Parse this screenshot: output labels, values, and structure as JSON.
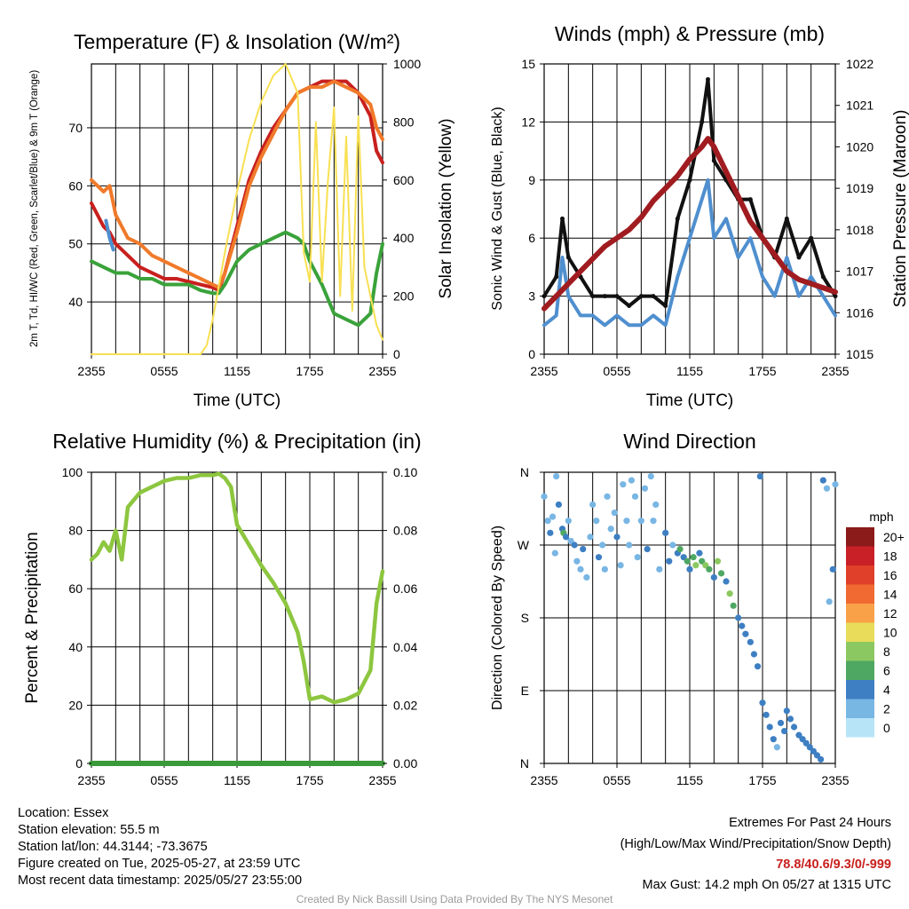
{
  "chart_data": [
    {
      "type": "line",
      "title": "Temperature (F) & Insolation (W/m²)",
      "xlabel": "Time (UTC)",
      "ylabel": "2m T, Td, HI/WC (Red, Green, Scarlet/Blue) & 9m T (Orange)",
      "ylabel_right": "Solar Insolation (Yellow)",
      "x_ticks": [
        "2355",
        "0555",
        "1155",
        "1755",
        "2355"
      ],
      "ylim": [
        31,
        81
      ],
      "y_ticks": [
        40,
        50,
        60,
        70
      ],
      "ylim_right": [
        0,
        1000
      ],
      "y_ticks_right": [
        0,
        200,
        400,
        600,
        800,
        1000
      ],
      "grid": true,
      "series": [
        {
          "name": "2m T",
          "color": "#c8201e",
          "axis": "left",
          "x": [
            0,
            1,
            1.5,
            2,
            3,
            4,
            5,
            6,
            7,
            8,
            9,
            10,
            10.5,
            11,
            12,
            13,
            14,
            15,
            16,
            17,
            18,
            19,
            20,
            21,
            22,
            23,
            23.5,
            24
          ],
          "values": [
            57,
            53,
            52,
            50,
            48,
            46,
            45,
            44,
            44,
            43.5,
            43,
            42.5,
            42,
            45,
            53,
            61,
            66,
            70,
            73,
            76,
            77,
            78,
            78,
            78,
            76,
            72,
            66,
            64
          ]
        },
        {
          "name": "Dewpoint",
          "color": "#3aa23a",
          "axis": "left",
          "x": [
            0,
            1,
            2,
            3,
            4,
            5,
            6,
            7,
            8,
            9,
            10,
            10.5,
            11,
            12,
            13,
            14,
            15,
            16,
            17,
            17.5,
            18,
            19,
            20,
            21,
            22,
            23,
            23.5,
            24
          ],
          "values": [
            47,
            46,
            45,
            45,
            44,
            44,
            43,
            43,
            43,
            42,
            41.5,
            41.5,
            43,
            47,
            49,
            50,
            51,
            52,
            51,
            50,
            47,
            43,
            38,
            37,
            36,
            38,
            45,
            50
          ]
        },
        {
          "name": "HI/WC",
          "color": "#4f8fcf",
          "axis": "left",
          "x": [
            1.2,
            1.5,
            1.8
          ],
          "values": [
            54,
            51,
            49
          ]
        },
        {
          "name": "9m T",
          "color": "#f07a2a",
          "axis": "left",
          "x": [
            0,
            1,
            1.5,
            2,
            3,
            4,
            5,
            6,
            7,
            8,
            9,
            10,
            10.5,
            11,
            12,
            13,
            14,
            15,
            16,
            17,
            18,
            19,
            20,
            21,
            22,
            23,
            23.5,
            24
          ],
          "values": [
            61,
            59,
            60,
            55,
            51,
            50,
            48,
            47,
            46,
            45,
            44,
            43,
            42.5,
            45,
            52,
            60,
            65,
            69,
            73,
            76,
            77,
            77,
            78,
            77,
            76,
            74,
            70,
            68
          ]
        },
        {
          "name": "Solar Insolation",
          "color": "#f8e053",
          "axis": "right",
          "x": [
            0,
            9,
            9.5,
            10,
            11,
            12,
            13,
            14,
            15,
            16,
            16.5,
            17,
            17.5,
            18,
            18.5,
            19,
            19.5,
            20,
            20.5,
            21,
            21.5,
            22,
            22.5,
            23,
            23.5,
            24
          ],
          "values": [
            0,
            0,
            30,
            120,
            350,
            560,
            740,
            870,
            960,
            1000,
            950,
            900,
            350,
            250,
            800,
            250,
            600,
            850,
            200,
            750,
            150,
            820,
            300,
            200,
            100,
            50
          ]
        }
      ]
    },
    {
      "type": "line",
      "title": "Winds (mph) & Pressure (mb)",
      "xlabel": "Time (UTC)",
      "ylabel": "Sonic Wind & Gust (Blue, Black)",
      "ylabel_right": "Station Pressure (Maroon)",
      "x_ticks": [
        "2355",
        "0555",
        "1155",
        "1755",
        "2355"
      ],
      "ylim": [
        0,
        15
      ],
      "y_ticks": [
        0,
        3,
        6,
        9,
        12,
        15
      ],
      "ylim_right": [
        1015,
        1022
      ],
      "y_ticks_right": [
        1015,
        1016,
        1017,
        1018,
        1019,
        1020,
        1021,
        1022
      ],
      "grid": true,
      "series": [
        {
          "name": "Sonic Wind",
          "color": "#4f8fcf",
          "axis": "left",
          "x": [
            0,
            1,
            1.5,
            2,
            3,
            4,
            5,
            6,
            7,
            8,
            9,
            10,
            11,
            12,
            13,
            13.5,
            14,
            15,
            16,
            17,
            18,
            19,
            20,
            21,
            22,
            23,
            24
          ],
          "values": [
            1.5,
            2,
            5,
            3,
            2,
            2,
            1.5,
            2,
            1.5,
            1.5,
            2,
            1.5,
            4,
            6,
            8,
            9,
            6,
            7,
            5,
            6,
            4,
            3,
            5,
            3,
            4,
            3,
            2
          ]
        },
        {
          "name": "Gust",
          "color": "#111111",
          "axis": "left",
          "x": [
            0,
            1,
            1.5,
            2,
            3,
            4,
            5,
            6,
            7,
            8,
            9,
            10,
            11,
            12,
            13,
            13.5,
            14,
            15,
            16,
            17,
            18,
            19,
            20,
            21,
            22,
            23,
            24
          ],
          "values": [
            3,
            4,
            7,
            5,
            4,
            3,
            3,
            3,
            2.5,
            3,
            3,
            2.5,
            7,
            9,
            12,
            14.2,
            10,
            9,
            8,
            8,
            6,
            5,
            7,
            5,
            6,
            4,
            3
          ]
        },
        {
          "name": "Station Pressure",
          "color": "#a01c20",
          "axis": "right",
          "x": [
            0,
            1,
            2,
            3,
            4,
            5,
            6,
            7,
            8,
            9,
            10,
            11,
            12,
            13,
            13.5,
            14,
            15,
            16,
            17,
            18,
            19,
            20,
            21,
            22,
            23,
            24
          ],
          "values": [
            1016.1,
            1016.4,
            1016.7,
            1017.0,
            1017.3,
            1017.6,
            1017.8,
            1018.0,
            1018.3,
            1018.7,
            1019.0,
            1019.3,
            1019.7,
            1020.0,
            1020.2,
            1020.0,
            1019.4,
            1018.8,
            1018.2,
            1017.8,
            1017.4,
            1017.0,
            1016.8,
            1016.7,
            1016.6,
            1016.5
          ]
        }
      ]
    },
    {
      "type": "line",
      "title": "Relative Humidity (%) & Precipitation (in)",
      "xlabel": "",
      "ylabel": "Percent & Precipitation",
      "x_ticks": [
        "2355",
        "0555",
        "1155",
        "1755",
        "2355"
      ],
      "ylim": [
        0,
        100
      ],
      "y_ticks": [
        0,
        20,
        40,
        60,
        80,
        100
      ],
      "ylim_right": [
        0,
        0.1
      ],
      "y_ticks_right": [
        "0.00",
        "0.02",
        "0.04",
        "0.06",
        "0.08",
        "0.10"
      ],
      "grid": true,
      "series": [
        {
          "name": "Relative Humidity",
          "color": "#8dc63f",
          "axis": "left",
          "x": [
            0,
            0.5,
            1,
            1.5,
            2,
            2.5,
            3,
            4,
            5,
            6,
            7,
            8,
            9,
            10,
            10.5,
            11,
            11.5,
            12,
            13,
            14,
            15,
            16,
            17,
            17.5,
            18,
            19,
            20,
            21,
            22,
            23,
            23.5,
            24
          ],
          "values": [
            70,
            72,
            76,
            73,
            80,
            70,
            88,
            93,
            95,
            97,
            98,
            98,
            99,
            99,
            99.5,
            98,
            95,
            82,
            75,
            68,
            62,
            55,
            45,
            35,
            22,
            23,
            21,
            22,
            24,
            32,
            55,
            66
          ]
        },
        {
          "name": "Precipitation",
          "color": "#3a9a3a",
          "axis": "left",
          "x": [
            0,
            24
          ],
          "values": [
            0,
            0
          ]
        }
      ]
    },
    {
      "type": "scatter",
      "title": "Wind Direction",
      "xlabel": "",
      "ylabel": "Direction (Colored By Speed)",
      "x_ticks": [
        "2355",
        "0555",
        "1155",
        "1755",
        "2355"
      ],
      "y_ticks": [
        "N",
        "E",
        "S",
        "W",
        "N"
      ],
      "legend_title": "mph",
      "legend_labels": [
        "20+",
        "18",
        "16",
        "14",
        "12",
        "10",
        "8",
        "6",
        "4",
        "2",
        "0"
      ],
      "legend_colors": [
        "#8b1a1a",
        "#c92028",
        "#e0402a",
        "#f06a32",
        "#f8a148",
        "#e8dc5a",
        "#8cc861",
        "#4ea862",
        "#3d7fc2",
        "#78b6e4",
        "#b8e4f8"
      ],
      "legend_placement": "right",
      "points": [
        [
          0,
          330,
          1
        ],
        [
          0.3,
          300,
          2
        ],
        [
          0.5,
          285,
          3
        ],
        [
          0.7,
          305,
          1
        ],
        [
          0.9,
          260,
          2
        ],
        [
          1,
          355,
          1
        ],
        [
          1.2,
          320,
          3
        ],
        [
          1.5,
          290,
          4
        ],
        [
          1.6,
          285,
          6
        ],
        [
          1.8,
          280,
          4
        ],
        [
          2,
          300,
          2
        ],
        [
          2.2,
          275,
          1
        ],
        [
          2.5,
          270,
          3
        ],
        [
          2.7,
          250,
          2
        ],
        [
          3,
          240,
          1
        ],
        [
          3.2,
          265,
          3
        ],
        [
          3.5,
          230,
          2
        ],
        [
          3.8,
          280,
          1
        ],
        [
          4,
          320,
          2
        ],
        [
          4.3,
          300,
          1
        ],
        [
          4.5,
          255,
          3
        ],
        [
          4.8,
          270,
          2
        ],
        [
          5,
          240,
          1
        ],
        [
          5.2,
          330,
          1
        ],
        [
          5.5,
          290,
          2
        ],
        [
          5.8,
          310,
          1
        ],
        [
          6,
          280,
          3
        ],
        [
          6.3,
          245,
          2
        ],
        [
          6.5,
          345,
          1
        ],
        [
          6.8,
          300,
          2
        ],
        [
          7,
          270,
          1
        ],
        [
          7.2,
          350,
          2
        ],
        [
          7.5,
          330,
          1
        ],
        [
          7.7,
          255,
          2
        ],
        [
          8,
          300,
          2
        ],
        [
          8.3,
          340,
          1
        ],
        [
          8.5,
          265,
          3
        ],
        [
          8.8,
          355,
          1
        ],
        [
          9,
          300,
          2
        ],
        [
          9.2,
          320,
          1
        ],
        [
          9.5,
          240,
          2
        ],
        [
          10,
          285,
          3
        ],
        [
          10.3,
          250,
          4
        ],
        [
          10.6,
          270,
          2
        ],
        [
          11,
          260,
          4
        ],
        [
          11.2,
          265,
          6
        ],
        [
          11.5,
          255,
          4
        ],
        [
          11.8,
          250,
          5
        ],
        [
          12,
          240,
          4
        ],
        [
          12.3,
          255,
          6
        ],
        [
          12.5,
          245,
          7
        ],
        [
          12.8,
          260,
          4
        ],
        [
          13,
          250,
          6
        ],
        [
          13.3,
          245,
          7
        ],
        [
          13.6,
          240,
          5
        ],
        [
          14,
          230,
          4
        ],
        [
          14.3,
          250,
          7
        ],
        [
          14.6,
          235,
          6
        ],
        [
          15,
          225,
          4
        ],
        [
          15.3,
          210,
          7
        ],
        [
          15.6,
          195,
          5
        ],
        [
          16,
          180,
          4
        ],
        [
          16.3,
          170,
          3
        ],
        [
          16.6,
          160,
          4
        ],
        [
          17,
          150,
          3
        ],
        [
          17.3,
          135,
          4
        ],
        [
          17.6,
          120,
          3
        ],
        [
          17.8,
          355,
          4
        ],
        [
          18,
          75,
          4
        ],
        [
          18.3,
          60,
          3
        ],
        [
          18.6,
          45,
          4
        ],
        [
          18.9,
          30,
          3
        ],
        [
          19.2,
          20,
          2
        ],
        [
          19.5,
          50,
          4
        ],
        [
          19.8,
          40,
          3
        ],
        [
          20,
          65,
          4
        ],
        [
          20.3,
          55,
          3
        ],
        [
          20.6,
          45,
          4
        ],
        [
          21,
          35,
          4
        ],
        [
          21.3,
          30,
          3
        ],
        [
          21.6,
          25,
          4
        ],
        [
          21.9,
          20,
          3
        ],
        [
          22.2,
          15,
          4
        ],
        [
          22.5,
          10,
          3
        ],
        [
          22.8,
          5,
          4
        ],
        [
          23,
          350,
          3
        ],
        [
          23.3,
          340,
          2
        ],
        [
          23.5,
          200,
          2
        ],
        [
          23.8,
          240,
          3
        ],
        [
          24,
          345,
          1
        ]
      ]
    }
  ],
  "info": {
    "location": "Location: Essex",
    "elevation": "Station elevation: 55.5 m",
    "latlon": "Station lat/lon: 44.3144; -73.3675",
    "created": "Figure created on Tue, 2025-05-27, at 23:59 UTC",
    "recent": "Most recent data timestamp: 2025/05/27 23:55:00"
  },
  "extremes": {
    "title": "Extremes For Past 24 Hours",
    "subtitle": "(High/Low/Max Wind/Precipitation/Snow Depth)",
    "values": "78.8/40.6/9.3/0/-999",
    "values_color": "#c8201e",
    "gust": "Max Gust: 14.2 mph On 05/27 at 1315 UTC"
  },
  "credit": "Created By Nick Bassill Using Data Provided By The NYS Mesonet"
}
